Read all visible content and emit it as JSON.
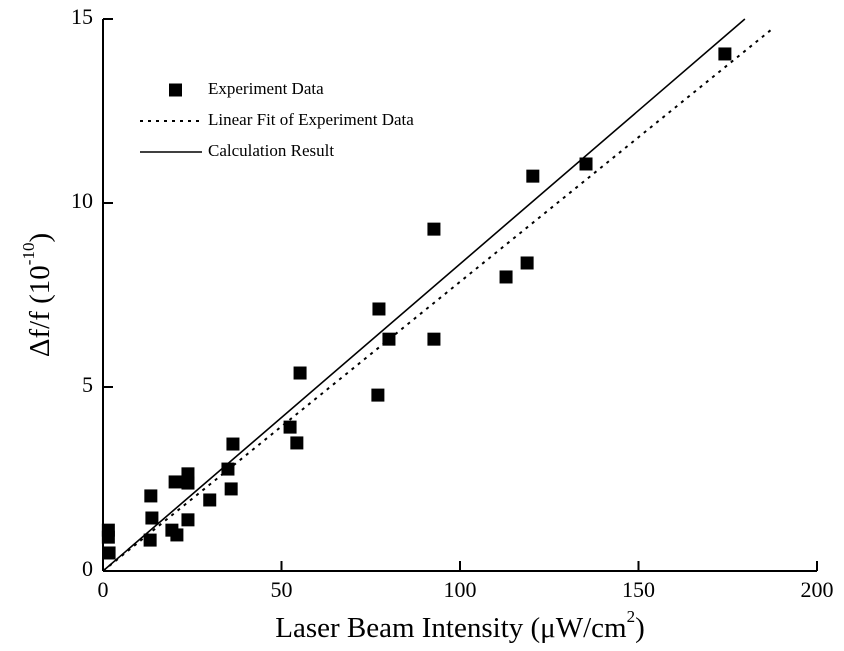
{
  "chart_data": {
    "type": "scatter",
    "xlabel": {
      "text": "Laser Beam Intensity (μW/cm",
      "sup": "2",
      "end": ")"
    },
    "ylabel": {
      "text": "Δf/f (10",
      "sup": "-10",
      "end": ")"
    },
    "xlim": [
      0,
      200
    ],
    "xticks": [
      0,
      50,
      100,
      150,
      200
    ],
    "ylim": [
      0,
      15
    ],
    "yticks": [
      0,
      5,
      10,
      15
    ],
    "legend": "top-left",
    "grid": false,
    "series": [
      {
        "name": "Experiment Data",
        "style": "markers",
        "color": "#000000",
        "x": [
          174.2,
          135.3,
          120.4,
          118.8,
          112.9,
          92.7,
          92.7,
          80.1,
          77.3,
          77.0,
          55.2,
          54.3,
          52.4,
          36.4,
          35.0,
          35.9,
          29.9,
          23.8,
          23.8,
          20.2,
          23.8,
          19.3,
          20.7,
          13.4,
          13.7,
          13.2,
          1.5,
          1.5,
          1.7
        ],
        "values": [
          14.05,
          11.06,
          10.73,
          8.37,
          7.99,
          9.29,
          6.3,
          6.3,
          7.12,
          4.78,
          5.38,
          3.48,
          3.91,
          3.45,
          2.77,
          2.23,
          1.93,
          2.64,
          2.39,
          2.42,
          1.39,
          1.11,
          0.98,
          2.04,
          1.44,
          0.84,
          1.11,
          0.92,
          0.49
        ]
      },
      {
        "name": "Linear Fit of Experiment Data",
        "style": "dotted",
        "color": "#000000",
        "x": [
          0,
          187.7
        ],
        "values": [
          0,
          14.75
        ]
      },
      {
        "name": "Calculation Result",
        "style": "solid",
        "color": "#000000",
        "x": [
          0,
          179.8
        ],
        "values": [
          0,
          15
        ]
      }
    ]
  }
}
